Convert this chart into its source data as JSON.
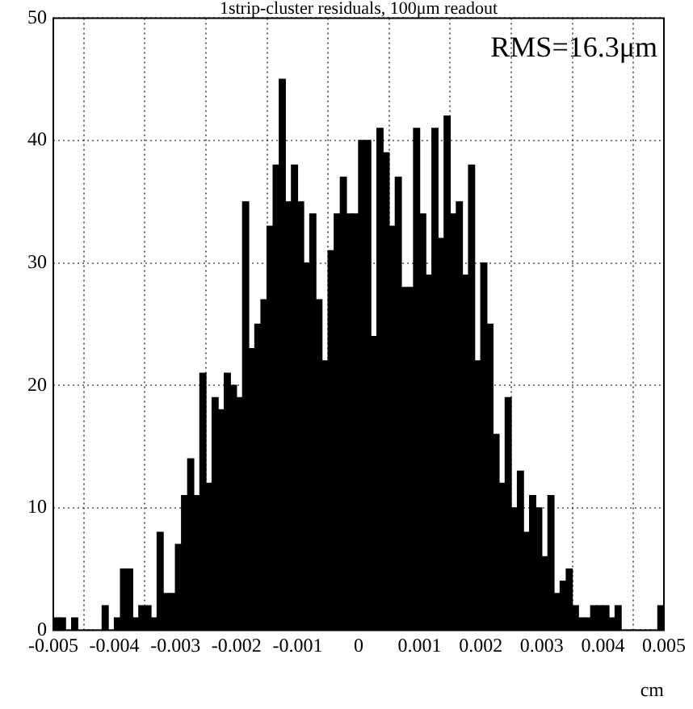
{
  "chart_data": {
    "type": "histogram",
    "title": "1strip-cluster residuals, 100μm readout",
    "xlabel": "cm",
    "annotations": [
      "RMS=16.3μm"
    ],
    "bins": [
      -0.005,
      -0.0049,
      -0.0048,
      -0.0047,
      -0.0046,
      -0.0045,
      -0.0044,
      -0.0043,
      -0.0042,
      -0.0041,
      -0.004,
      -0.0039,
      -0.0038,
      -0.0037,
      -0.0036,
      -0.0035,
      -0.0034,
      -0.0033,
      -0.0032,
      -0.0031,
      -0.003,
      -0.0029,
      -0.0028,
      -0.0027,
      -0.0026,
      -0.0025,
      -0.0024,
      -0.0023,
      -0.0022,
      -0.0021,
      -0.002,
      -0.0019,
      -0.0018,
      -0.0017,
      -0.0016,
      -0.0015,
      -0.0014,
      -0.0013,
      -0.0012,
      -0.0011,
      -0.001,
      -0.0009,
      -0.0008,
      -0.0007,
      -0.0006,
      -0.0005,
      -0.0004,
      -0.0003,
      -0.0002,
      -0.0001,
      0,
      0.0001,
      0.0002,
      0.0003,
      0.0004,
      0.0005,
      0.0006,
      0.0007,
      0.0008,
      0.0009,
      0.001,
      0.0011,
      0.0012,
      0.0013,
      0.0014,
      0.0015,
      0.0016,
      0.0017,
      0.0018,
      0.0019,
      0.002,
      0.0021,
      0.0022,
      0.0023,
      0.0024,
      0.0025,
      0.0026,
      0.0027,
      0.0028,
      0.0029,
      0.003,
      0.0031,
      0.0032,
      0.0033,
      0.0034,
      0.0035,
      0.0036,
      0.0037,
      0.0038,
      0.0039,
      0.004,
      0.0041,
      0.0042,
      0.0043,
      0.0044,
      0.0045,
      0.0046,
      0.0047,
      0.0048,
      0.0049,
      0.005
    ],
    "values": [
      1,
      1,
      0,
      1,
      0,
      0,
      0,
      0,
      2,
      0,
      1,
      5,
      5,
      1,
      2,
      2,
      1,
      8,
      3,
      3,
      7,
      11,
      14,
      11,
      21,
      12,
      19,
      18,
      21,
      20,
      19,
      35,
      23,
      25,
      27,
      33,
      38,
      45,
      35,
      38,
      35,
      30,
      34,
      27,
      22,
      31,
      34,
      37,
      34,
      34,
      40,
      40,
      24,
      41,
      39,
      33,
      37,
      28,
      28,
      41,
      34,
      29,
      41,
      32,
      42,
      34,
      35,
      29,
      38,
      22,
      30,
      25,
      16,
      12,
      19,
      10,
      13,
      8,
      11,
      10,
      6,
      11,
      3,
      4,
      5,
      2,
      1,
      1,
      2,
      2,
      2,
      1,
      2,
      0,
      0,
      0,
      0,
      0,
      0,
      2
    ],
    "color": "#000000",
    "xlim": [
      -0.005,
      0.005
    ],
    "xticks": [
      {
        "value": -0.005,
        "label": "-0.005"
      },
      {
        "value": -0.004,
        "label": "-0.004"
      },
      {
        "value": -0.003,
        "label": "-0.003"
      },
      {
        "value": -0.002,
        "label": "-0.002"
      },
      {
        "value": -0.001,
        "label": "-0.001"
      },
      0,
      {
        "value": 0.001,
        "label": "0.001"
      },
      {
        "value": 0.002,
        "label": "0.002"
      },
      {
        "value": 0.003,
        "label": "0.003"
      },
      {
        "value": 0.004,
        "label": "0.004"
      },
      {
        "value": 0.005,
        "label": "0.005"
      }
    ],
    "ylim": [
      0,
      50
    ],
    "yticks": [
      0,
      10,
      20,
      30,
      40,
      50
    ],
    "grid": true,
    "legend": false
  }
}
